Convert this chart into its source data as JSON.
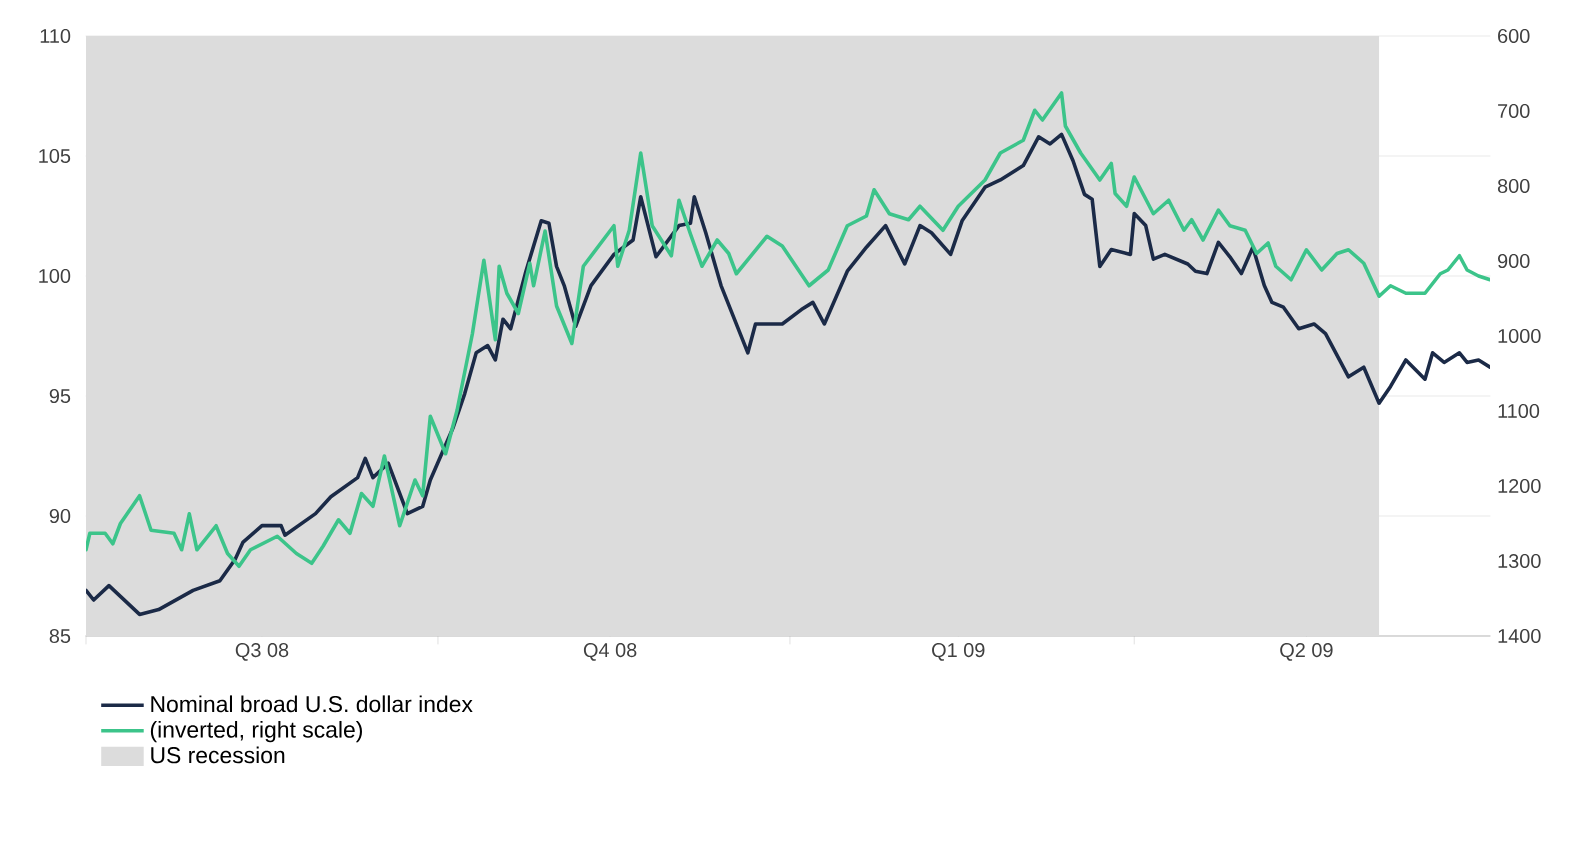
{
  "chart_data": {
    "type": "line",
    "xlim": [
      "2008-07-01",
      "2009-07-03"
    ],
    "xticks": [
      {
        "value": "2008-07-01",
        "label": null
      },
      {
        "value": "2008-08-16",
        "label": "Q3 08"
      },
      {
        "value": "2008-10-01",
        "label": null
      },
      {
        "value": "2008-11-15",
        "label": "Q4 08"
      },
      {
        "value": "2009-01-01",
        "label": null
      },
      {
        "value": "2009-02-14",
        "label": "Q1 09"
      },
      {
        "value": "2009-04-01",
        "label": null
      },
      {
        "value": "2009-05-16",
        "label": "Q2 09"
      }
    ],
    "ylim": [
      85,
      110
    ],
    "yticks": [
      85,
      90,
      95,
      100,
      105,
      110
    ],
    "y2lim": [
      1400,
      600
    ],
    "y2ticks": [
      600,
      700,
      800,
      900,
      1000,
      1100,
      1200,
      1300,
      1400
    ],
    "grid": "y",
    "legend": "bottom left",
    "line_style": "solid",
    "bands": [
      {
        "axis": "x",
        "from": "2008-07-01",
        "to": "2009-06-04",
        "label": "US recession",
        "color": "#dcdcdc"
      }
    ],
    "series": [
      {
        "name": "Nominal broad U.S. dollar index",
        "color": "#1b2a47",
        "x": [
          "2008-07-01",
          "2008-07-03",
          "2008-07-07",
          "2008-07-15",
          "2008-07-20",
          "2008-07-29",
          "2008-08-05",
          "2008-08-09",
          "2008-08-11",
          "2008-08-16",
          "2008-08-21",
          "2008-08-22",
          "2008-08-30",
          "2008-09-03",
          "2008-09-10",
          "2008-09-12",
          "2008-09-14",
          "2008-09-18",
          "2008-09-23",
          "2008-09-27",
          "2008-09-29",
          "2008-10-05",
          "2008-10-08",
          "2008-10-11",
          "2008-10-14",
          "2008-10-16",
          "2008-10-18",
          "2008-10-20",
          "2008-10-24",
          "2008-10-28",
          "2008-10-30",
          "2008-11-01",
          "2008-11-03",
          "2008-11-06",
          "2008-11-10",
          "2008-11-16",
          "2008-11-21",
          "2008-11-23",
          "2008-11-27",
          "2008-12-03",
          "2008-12-06",
          "2008-12-07",
          "2008-12-10",
          "2008-12-14",
          "2008-12-21",
          "2008-12-23",
          "2008-12-30",
          "2009-01-04",
          "2009-01-07",
          "2009-01-10",
          "2009-01-16",
          "2009-01-21",
          "2009-01-26",
          "2009-01-31",
          "2009-02-04",
          "2009-02-07",
          "2009-02-12",
          "2009-02-15",
          "2009-02-21",
          "2009-02-25",
          "2009-03-03",
          "2009-03-07",
          "2009-03-10",
          "2009-03-13",
          "2009-03-16",
          "2009-03-19",
          "2009-03-21",
          "2009-03-23",
          "2009-03-26",
          "2009-03-31",
          "2009-04-01",
          "2009-04-04",
          "2009-04-06",
          "2009-04-09",
          "2009-04-15",
          "2009-04-17",
          "2009-04-20",
          "2009-04-23",
          "2009-04-26",
          "2009-04-29",
          "2009-05-02",
          "2009-05-05",
          "2009-05-07",
          "2009-05-10",
          "2009-05-14",
          "2009-05-18",
          "2009-05-21",
          "2009-05-25",
          "2009-05-27",
          "2009-05-31",
          "2009-06-04",
          "2009-06-07",
          "2009-06-11",
          "2009-06-16",
          "2009-06-18",
          "2009-06-21",
          "2009-06-25",
          "2009-06-27",
          "2009-06-30",
          "2009-07-03"
        ],
        "values": [
          86.9,
          86.5,
          87.1,
          85.9,
          86.1,
          86.9,
          87.3,
          88.2,
          88.9,
          89.6,
          89.6,
          89.2,
          90.1,
          90.8,
          91.6,
          92.4,
          91.6,
          92.2,
          90.1,
          90.4,
          91.5,
          93.7,
          95.1,
          96.8,
          97.1,
          96.5,
          98.2,
          97.8,
          100.2,
          102.3,
          102.2,
          100.4,
          99.6,
          97.9,
          99.6,
          100.9,
          101.5,
          103.3,
          100.8,
          102.1,
          102.2,
          103.3,
          101.8,
          99.6,
          96.8,
          98.0,
          98.0,
          98.6,
          98.9,
          98.0,
          100.2,
          101.2,
          102.1,
          100.5,
          102.1,
          101.8,
          100.9,
          102.3,
          103.7,
          104.0,
          104.6,
          105.8,
          105.5,
          105.9,
          104.8,
          103.4,
          103.2,
          100.4,
          101.1,
          100.9,
          102.6,
          102.1,
          100.7,
          100.9,
          100.5,
          100.2,
          100.1,
          101.4,
          100.8,
          100.1,
          101.2,
          99.6,
          98.9,
          98.7,
          97.8,
          98.0,
          97.6,
          96.4,
          95.8,
          96.2,
          94.7,
          95.4,
          96.5,
          95.7,
          96.8,
          96.4,
          96.8,
          96.4,
          96.5,
          96.2
        ]
      },
      {
        "name": "(inverted, right scale)",
        "color": "#3cc48a",
        "axis": "y2",
        "x": [
          "2008-07-01",
          "2008-07-02",
          "2008-07-06",
          "2008-07-08",
          "2008-07-10",
          "2008-07-15",
          "2008-07-18",
          "2008-07-24",
          "2008-07-26",
          "2008-07-28",
          "2008-07-30",
          "2008-08-04",
          "2008-08-07",
          "2008-08-10",
          "2008-08-13",
          "2008-08-20",
          "2008-08-25",
          "2008-08-29",
          "2008-09-01",
          "2008-09-05",
          "2008-09-08",
          "2008-09-11",
          "2008-09-14",
          "2008-09-17",
          "2008-09-21",
          "2008-09-25",
          "2008-09-27",
          "2008-09-29",
          "2008-10-03",
          "2008-10-06",
          "2008-10-10",
          "2008-10-13",
          "2008-10-16",
          "2008-10-17",
          "2008-10-19",
          "2008-10-22",
          "2008-10-25",
          "2008-10-26",
          "2008-10-29",
          "2008-11-01",
          "2008-11-05",
          "2008-11-08",
          "2008-11-16",
          "2008-11-17",
          "2008-11-20",
          "2008-11-23",
          "2008-11-26",
          "2008-12-01",
          "2008-12-03",
          "2008-12-06",
          "2008-12-09",
          "2008-12-13",
          "2008-12-16",
          "2008-12-18",
          "2008-12-26",
          "2008-12-30",
          "2009-01-06",
          "2009-01-11",
          "2009-01-16",
          "2009-01-21",
          "2009-01-23",
          "2009-01-27",
          "2009-02-01",
          "2009-02-04",
          "2009-02-10",
          "2009-02-14",
          "2009-02-21",
          "2009-02-25",
          "2009-03-03",
          "2009-03-06",
          "2009-03-08",
          "2009-03-13",
          "2009-03-14",
          "2009-03-18",
          "2009-03-23",
          "2009-03-26",
          "2009-03-27",
          "2009-03-30",
          "2009-04-01",
          "2009-04-06",
          "2009-04-10",
          "2009-04-14",
          "2009-04-16",
          "2009-04-19",
          "2009-04-23",
          "2009-04-26",
          "2009-04-30",
          "2009-05-03",
          "2009-05-06",
          "2009-05-08",
          "2009-05-12",
          "2009-05-16",
          "2009-05-20",
          "2009-05-24",
          "2009-05-27",
          "2009-05-31",
          "2009-06-04",
          "2009-06-07",
          "2009-06-11",
          "2009-06-16",
          "2009-06-20",
          "2009-06-22",
          "2009-06-25",
          "2009-06-27",
          "2009-06-30",
          "2009-07-03"
        ],
        "values": [
          1285,
          1263,
          1263,
          1277,
          1250,
          1213,
          1259,
          1263,
          1285,
          1237,
          1285,
          1253,
          1290,
          1307,
          1285,
          1267,
          1290,
          1303,
          1280,
          1245,
          1263,
          1210,
          1227,
          1160,
          1253,
          1192,
          1213,
          1107,
          1157,
          1099,
          997,
          899,
          1005,
          907,
          943,
          970,
          903,
          933,
          860,
          960,
          1010,
          907,
          853,
          907,
          859,
          756,
          853,
          893,
          819,
          864,
          907,
          872,
          890,
          917,
          867,
          880,
          933,
          912,
          853,
          840,
          805,
          837,
          845,
          827,
          859,
          827,
          792,
          756,
          739,
          699,
          712,
          676,
          720,
          756,
          792,
          770,
          810,
          827,
          788,
          837,
          819,
          859,
          845,
          872,
          832,
          853,
          859,
          890,
          876,
          907,
          925,
          885,
          912,
          890,
          885,
          903,
          947,
          933,
          943,
          943,
          917,
          912,
          893,
          912,
          920,
          925
        ]
      }
    ]
  }
}
